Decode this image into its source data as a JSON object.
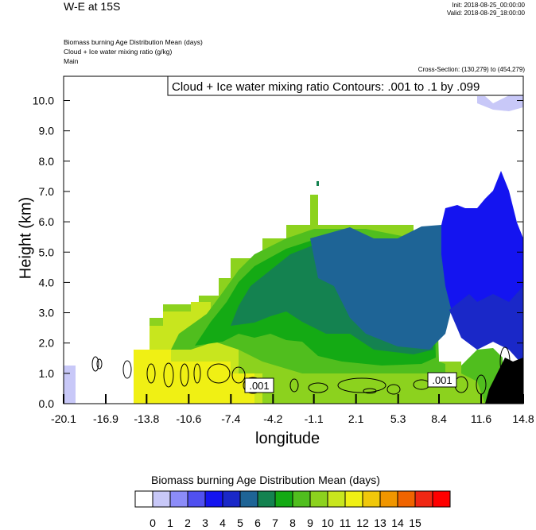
{
  "header": {
    "title": "W-E at 15S",
    "init": "Init: 2018-08-25_00:00:00",
    "valid": "Valid: 2018-08-29_18:00:00",
    "field1": "Biomass burning Age Distribution Mean    (days)",
    "field2": "Cloud + Ice water mixing ratio    (g/kg)",
    "field3": "Main",
    "cross_section": "Cross-Section: (130,279) to (454,279)"
  },
  "chart_data": {
    "type": "heatmap",
    "contour_title": "Cloud + Ice water mixing ratio Contours: .001 to .1 by .099",
    "contour_labels": [
      ".001",
      ".001"
    ],
    "xlabel": "longitude",
    "ylabel": "Height (km)",
    "xlim": [
      -20.1,
      14.8
    ],
    "ylim": [
      0,
      10.8
    ],
    "x_ticks": [
      "-20.1",
      "-16.9",
      "-13.8",
      "-10.6",
      "-7.4",
      "-4.2",
      "-1.1",
      "2.1",
      "5.3",
      "8.4",
      "11.6",
      "14.8"
    ],
    "y_ticks": [
      "0.0",
      "1.0",
      "2.0",
      "3.0",
      "4.0",
      "5.0",
      "6.0",
      "7.0",
      "8.0",
      "9.0",
      "10.0"
    ],
    "colorbar": {
      "title": "Biomass burning Age Distribution Mean  (days)",
      "labels": [
        "0",
        "1",
        "2",
        "3",
        "4",
        "5",
        "6",
        "7",
        "8",
        "9",
        "10",
        "11",
        "12",
        "13",
        "14",
        "15"
      ],
      "colors": [
        "#ffffff",
        "#c8c8f8",
        "#8c8cf8",
        "#5050f0",
        "#1414f0",
        "#1a28c8",
        "#1e6496",
        "#148250",
        "#14aa14",
        "#50be1e",
        "#8cd21e",
        "#c8e61e",
        "#f0f014",
        "#f0c80a",
        "#f09600",
        "#f06400",
        "#f02814",
        "#ff0000"
      ]
    }
  }
}
